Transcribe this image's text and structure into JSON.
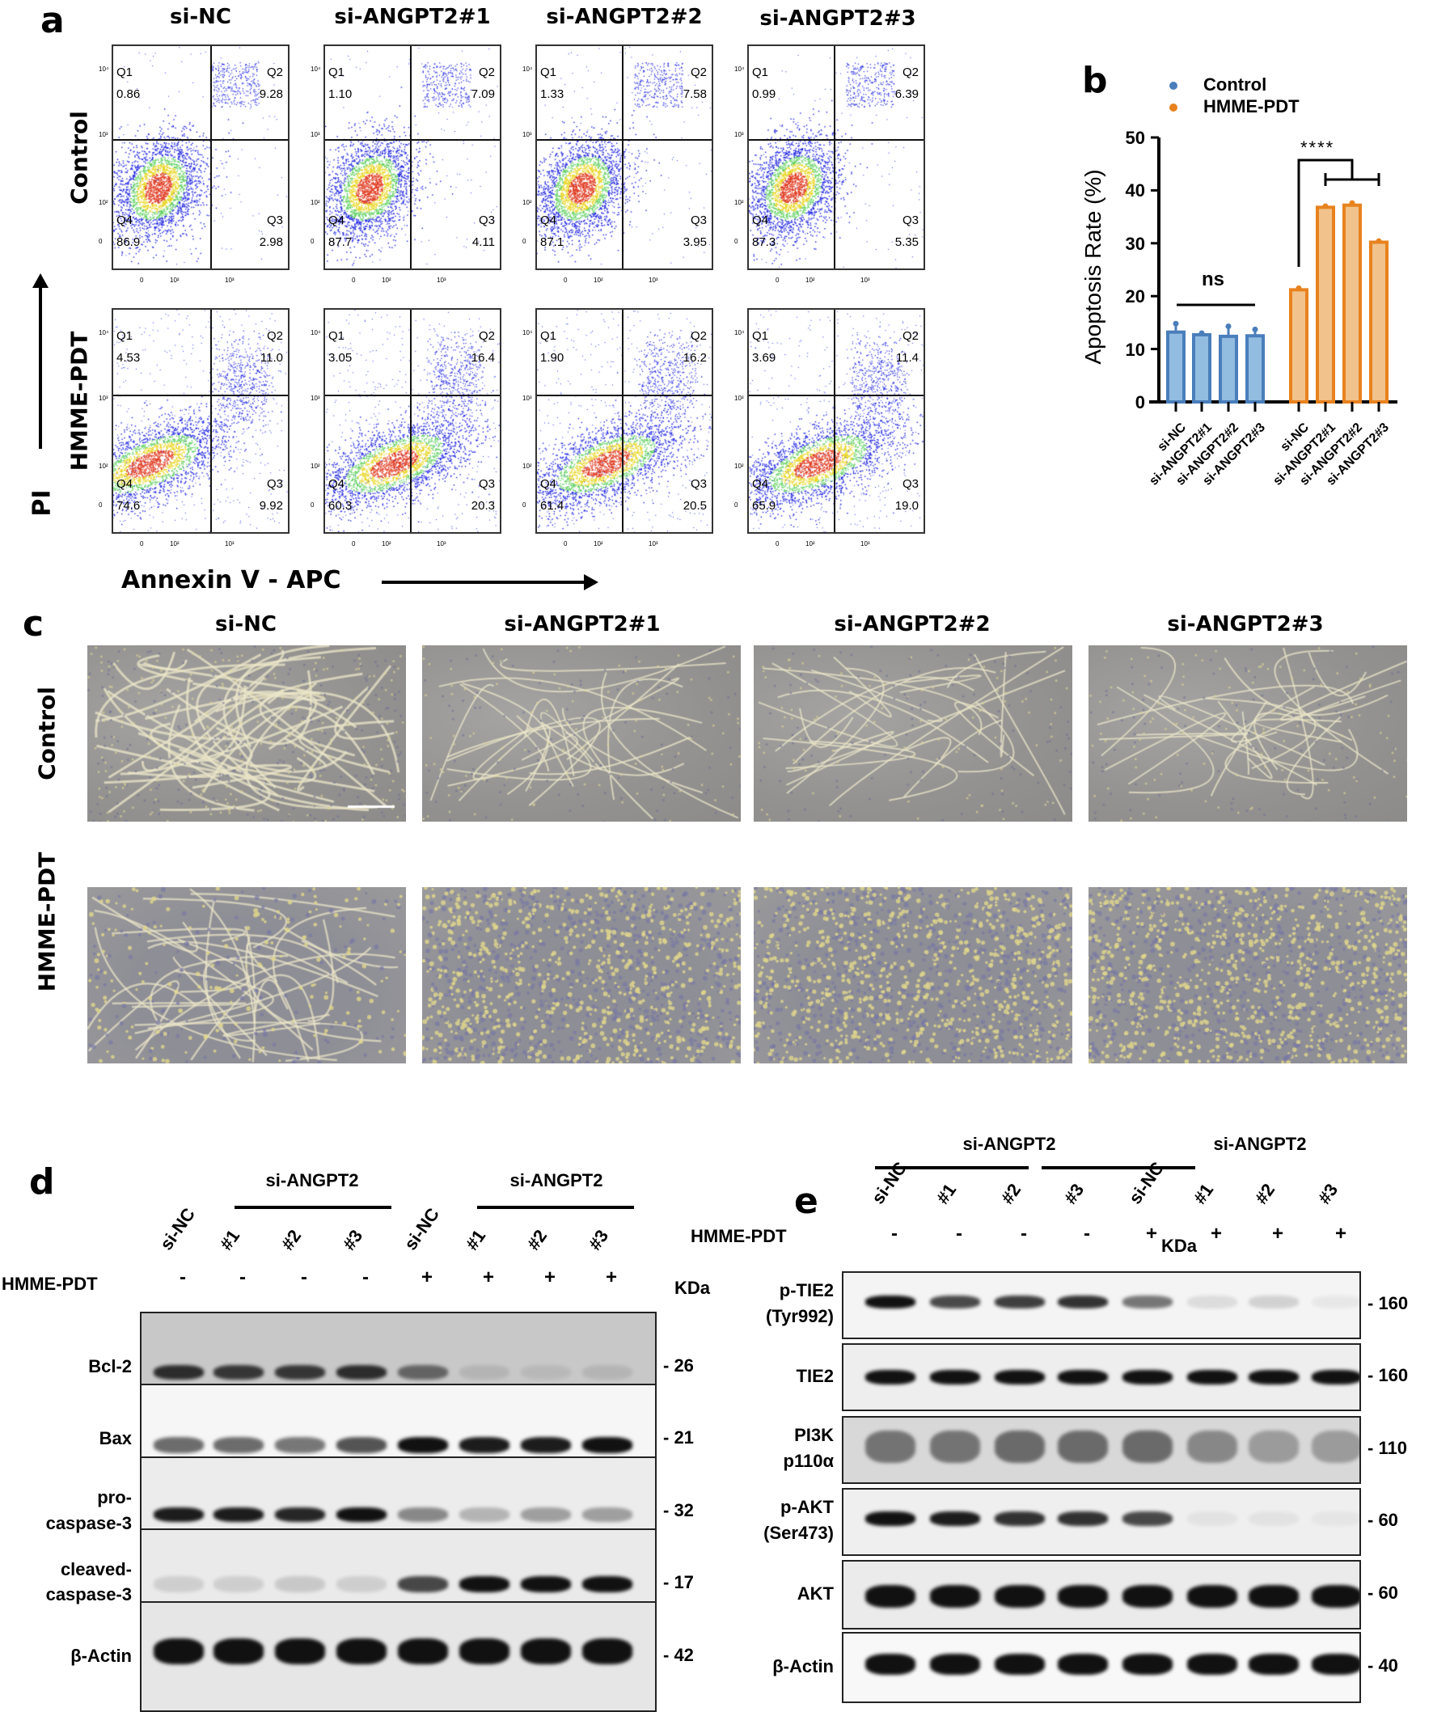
{
  "panel_a": {
    "letter": "a",
    "columns": [
      "si-NC",
      "si-ANGPT2#1",
      "si-ANGPT2#2",
      "si-ANGPT2#3"
    ],
    "rows": [
      "Control",
      "HMME-PDT"
    ],
    "y_axis_label": "PI",
    "x_axis_label": "Annexin V - APC",
    "y_ticks": [
      "10⁴",
      "10³",
      "10²",
      "0"
    ],
    "x_ticks": [
      "0",
      "10²",
      "10³"
    ],
    "quadrant_names": [
      "Q1",
      "Q2",
      "Q3",
      "Q4"
    ],
    "plots": [
      [
        {
          "Q1": "0.86",
          "Q2": "9.28",
          "Q3": "2.98",
          "Q4": "86.9"
        },
        {
          "Q1": "1.10",
          "Q2": "7.09",
          "Q3": "4.11",
          "Q4": "87.7"
        },
        {
          "Q1": "1.33",
          "Q2": "7.58",
          "Q3": "3.95",
          "Q4": "87.1"
        },
        {
          "Q1": "0.99",
          "Q2": "6.39",
          "Q3": "5.35",
          "Q4": "87.3"
        }
      ],
      [
        {
          "Q1": "4.53",
          "Q2": "11.0",
          "Q3": "9.92",
          "Q4": "74.6"
        },
        {
          "Q1": "3.05",
          "Q2": "16.4",
          "Q3": "20.3",
          "Q4": "60.3"
        },
        {
          "Q1": "1.90",
          "Q2": "16.2",
          "Q3": "20.5",
          "Q4": "61.4"
        },
        {
          "Q1": "3.69",
          "Q2": "11.4",
          "Q3": "19.0",
          "Q4": "65.9"
        }
      ]
    ]
  },
  "panel_b": {
    "letter": "b",
    "legend": [
      {
        "label": "Control",
        "color": "#4a7ebb"
      },
      {
        "label": "HMME-PDT",
        "color": "#e8821e"
      }
    ],
    "ylabel": "Apoptosis Rate (%)",
    "yticks": [
      "0",
      "10",
      "20",
      "30",
      "40",
      "50"
    ],
    "ns_label": "ns",
    "sig_label": "****"
  },
  "chart_data": {
    "type": "bar",
    "title": "",
    "xlabel": "",
    "ylabel": "Apoptosis Rate (%)",
    "ylim": [
      0,
      50
    ],
    "yticks": [
      0,
      10,
      20,
      30,
      40,
      50
    ],
    "grid": false,
    "legend_position": "top",
    "categories": [
      "si-NC",
      "si-ANGPT2#1",
      "si-ANGPT2#2",
      "si-ANGPT2#3"
    ],
    "series": [
      {
        "name": "Control",
        "color": "#4a7ebb",
        "fill": "#92bde0",
        "values": [
          13.2,
          12.7,
          12.4,
          12.5
        ],
        "error": [
          1.6,
          0.3,
          1.9,
          1.2
        ]
      },
      {
        "name": "HMME-PDT",
        "color": "#e8821e",
        "fill": "#f1c28c",
        "values": [
          21.2,
          36.8,
          37.2,
          30.2
        ],
        "error": [
          0.3,
          0.2,
          0.4,
          0.2
        ]
      }
    ],
    "annotations": [
      {
        "text": "ns",
        "group": "Control",
        "span": [
          "si-NC",
          "si-ANGPT2#3"
        ]
      },
      {
        "text": "****",
        "group": "HMME-PDT",
        "from": "si-NC",
        "to": [
          "si-ANGPT2#1",
          "si-ANGPT2#2",
          "si-ANGPT2#3"
        ]
      }
    ]
  },
  "panel_c": {
    "letter": "c",
    "columns": [
      "si-NC",
      "si-ANGPT2#1",
      "si-ANGPT2#2",
      "si-ANGPT2#3"
    ],
    "rows": [
      "Control",
      "HMME-PDT"
    ]
  },
  "panel_d": {
    "letter": "d",
    "group_title": "si-ANGPT2",
    "lanes": [
      "si-NC",
      "#1",
      "#2",
      "#3",
      "si-NC",
      "#1",
      "#2",
      "#3"
    ],
    "treatment_label": "HMME-PDT",
    "treatment": [
      "-",
      "-",
      "-",
      "-",
      "+",
      "+",
      "+",
      "+"
    ],
    "kda_label": "KDa",
    "blots": [
      {
        "label": "Bcl-2",
        "kda": "- 26"
      },
      {
        "label": "Bax",
        "kda": "- 21"
      },
      {
        "label": "pro-\ncaspase-3",
        "label_l1": "pro-",
        "label_l2": "caspase-3",
        "kda": "- 32"
      },
      {
        "label": "cleaved-\ncaspase-3",
        "label_l1": "cleaved-",
        "label_l2": "caspase-3",
        "kda": "- 17"
      },
      {
        "label": "β-Actin",
        "kda": "- 42"
      }
    ]
  },
  "panel_e": {
    "letter": "e",
    "group_title": "si-ANGPT2",
    "lanes": [
      "si-NC",
      "#1",
      "#2",
      "#3",
      "si-NC",
      "#1",
      "#2",
      "#3"
    ],
    "treatment_label": "HMME-PDT",
    "treatment": [
      "-",
      "-",
      "-",
      "-",
      "+",
      "+",
      "+",
      "+"
    ],
    "kda_label": "KDa",
    "blots": [
      {
        "label_l1": "p-TIE2",
        "label_l2": "(Tyr992)",
        "kda": "- 160"
      },
      {
        "label_l1": "TIE2",
        "label_l2": "",
        "kda": "- 160"
      },
      {
        "label_l1": "PI3K",
        "label_l2": "p110α",
        "kda": "- 110"
      },
      {
        "label_l1": "p-AKT",
        "label_l2": "(Ser473)",
        "kda": "- 60"
      },
      {
        "label_l1": "AKT",
        "label_l2": "",
        "kda": "- 60"
      },
      {
        "label_l1": "β-Actin",
        "label_l2": "",
        "kda": "- 40"
      }
    ]
  }
}
